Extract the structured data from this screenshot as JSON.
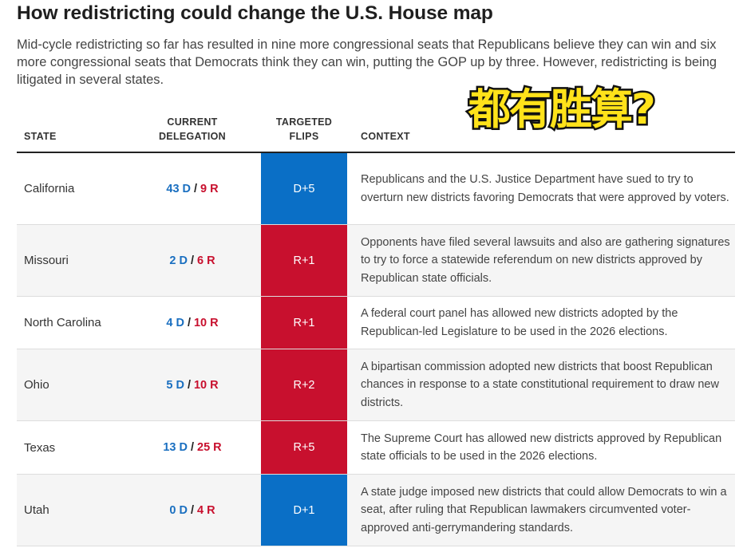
{
  "title": "How redistricting could change the U.S. House map",
  "subtitle": "Mid-cycle redistricting so far has resulted in nine more congressional seats that Republicans believe they can win and six more congressional seats that Democrats think they can win, putting the GOP up by three. However, redistricting is being litigated in several states.",
  "overlay_text": "都有胜算?",
  "columns": {
    "state": "STATE",
    "delegation_line1": "CURRENT",
    "delegation_line2": "DELEGATION",
    "flips_line1": "TARGETED",
    "flips_line2": "FLIPS",
    "context": "CONTEXT"
  },
  "colors": {
    "dem": "#1a6fc0",
    "rep": "#c8102e",
    "dem_fill": "#0a6fc6",
    "rep_fill": "#c8102e",
    "overlay_fill": "#ffe21a"
  },
  "rows": [
    {
      "state": "California",
      "dem": "43 D",
      "sep": "/",
      "rep": "9 R",
      "flips": "D+5",
      "party": "D",
      "context": "Republicans and the U.S. Justice Department have sued to try to overturn new districts favoring Democrats that were approved by voters."
    },
    {
      "state": "Missouri",
      "dem": "2 D",
      "sep": "/",
      "rep": "6 R",
      "flips": "R+1",
      "party": "R",
      "context": "Opponents have filed several lawsuits and also are gathering signatures to try to force a statewide referendum on new districts approved by Republican state officials."
    },
    {
      "state": "North Carolina",
      "dem": "4 D",
      "sep": "/",
      "rep": "10 R",
      "flips": "R+1",
      "party": "R",
      "context": "A federal court panel has allowed new districts adopted by the Republican-led Legislature to be used in the 2026 elections."
    },
    {
      "state": "Ohio",
      "dem": "5 D",
      "sep": "/",
      "rep": "10 R",
      "flips": "R+2",
      "party": "R",
      "context": "A bipartisan commission adopted new districts that boost Republican chances in response to a state constitutional requirement to draw new districts."
    },
    {
      "state": "Texas",
      "dem": "13 D",
      "sep": "/",
      "rep": "25 R",
      "flips": "R+5",
      "party": "R",
      "context": "The Supreme Court has allowed new districts approved by Republican state officials to be used in the 2026 elections."
    },
    {
      "state": "Utah",
      "dem": "0 D",
      "sep": "/",
      "rep": "4 R",
      "flips": "D+1",
      "party": "D",
      "context": "A state judge imposed new districts that could allow Democrats to win a seat, after ruling that Republican lawmakers circumvented voter-approved anti-gerrymandering standards."
    }
  ]
}
